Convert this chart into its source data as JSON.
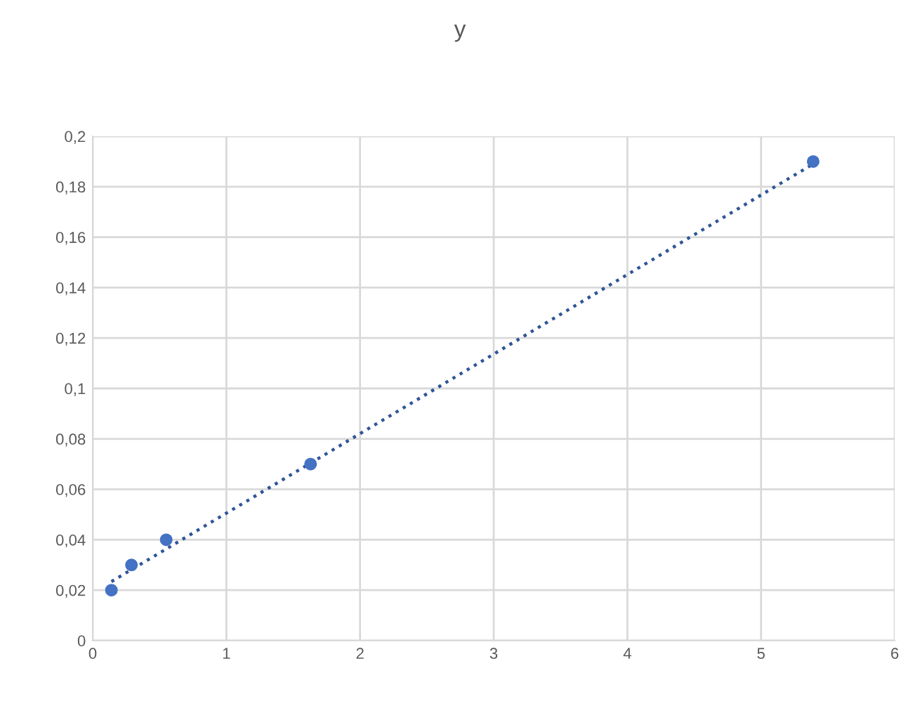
{
  "chart_data": {
    "type": "scatter",
    "title": "y",
    "series": [
      {
        "color": "#4472c4",
        "x": [
          0.14,
          0.29,
          0.55,
          1.63,
          5.39
        ],
        "values": [
          0.02,
          0.03,
          0.04,
          0.07,
          0.19
        ],
        "marker": "circle"
      },
      {
        "type": "line",
        "color": "#2f5597",
        "x": [
          0.14,
          5.39
        ],
        "values": [
          0.0234,
          0.189
        ],
        "line_style": "dotted",
        "marker": "none"
      }
    ],
    "xlim": [
      0,
      6
    ],
    "xticks": [
      0,
      1,
      2,
      3,
      4,
      5,
      6
    ],
    "ylim": [
      0,
      0.2
    ],
    "yticks": [
      0,
      {
        "value": 0.02,
        "label": "0,02"
      },
      {
        "value": 0.04,
        "label": "0,04"
      },
      {
        "value": 0.06,
        "label": "0,06"
      },
      {
        "value": 0.08,
        "label": "0,08"
      },
      {
        "value": 0.1,
        "label": "0,1"
      },
      {
        "value": 0.12,
        "label": "0,12"
      },
      {
        "value": 0.14,
        "label": "0,14"
      },
      {
        "value": 0.16,
        "label": "0,16"
      },
      {
        "value": 0.18,
        "label": "0,18"
      },
      {
        "value": 0.2,
        "label": "0,2"
      }
    ],
    "grid": true
  }
}
